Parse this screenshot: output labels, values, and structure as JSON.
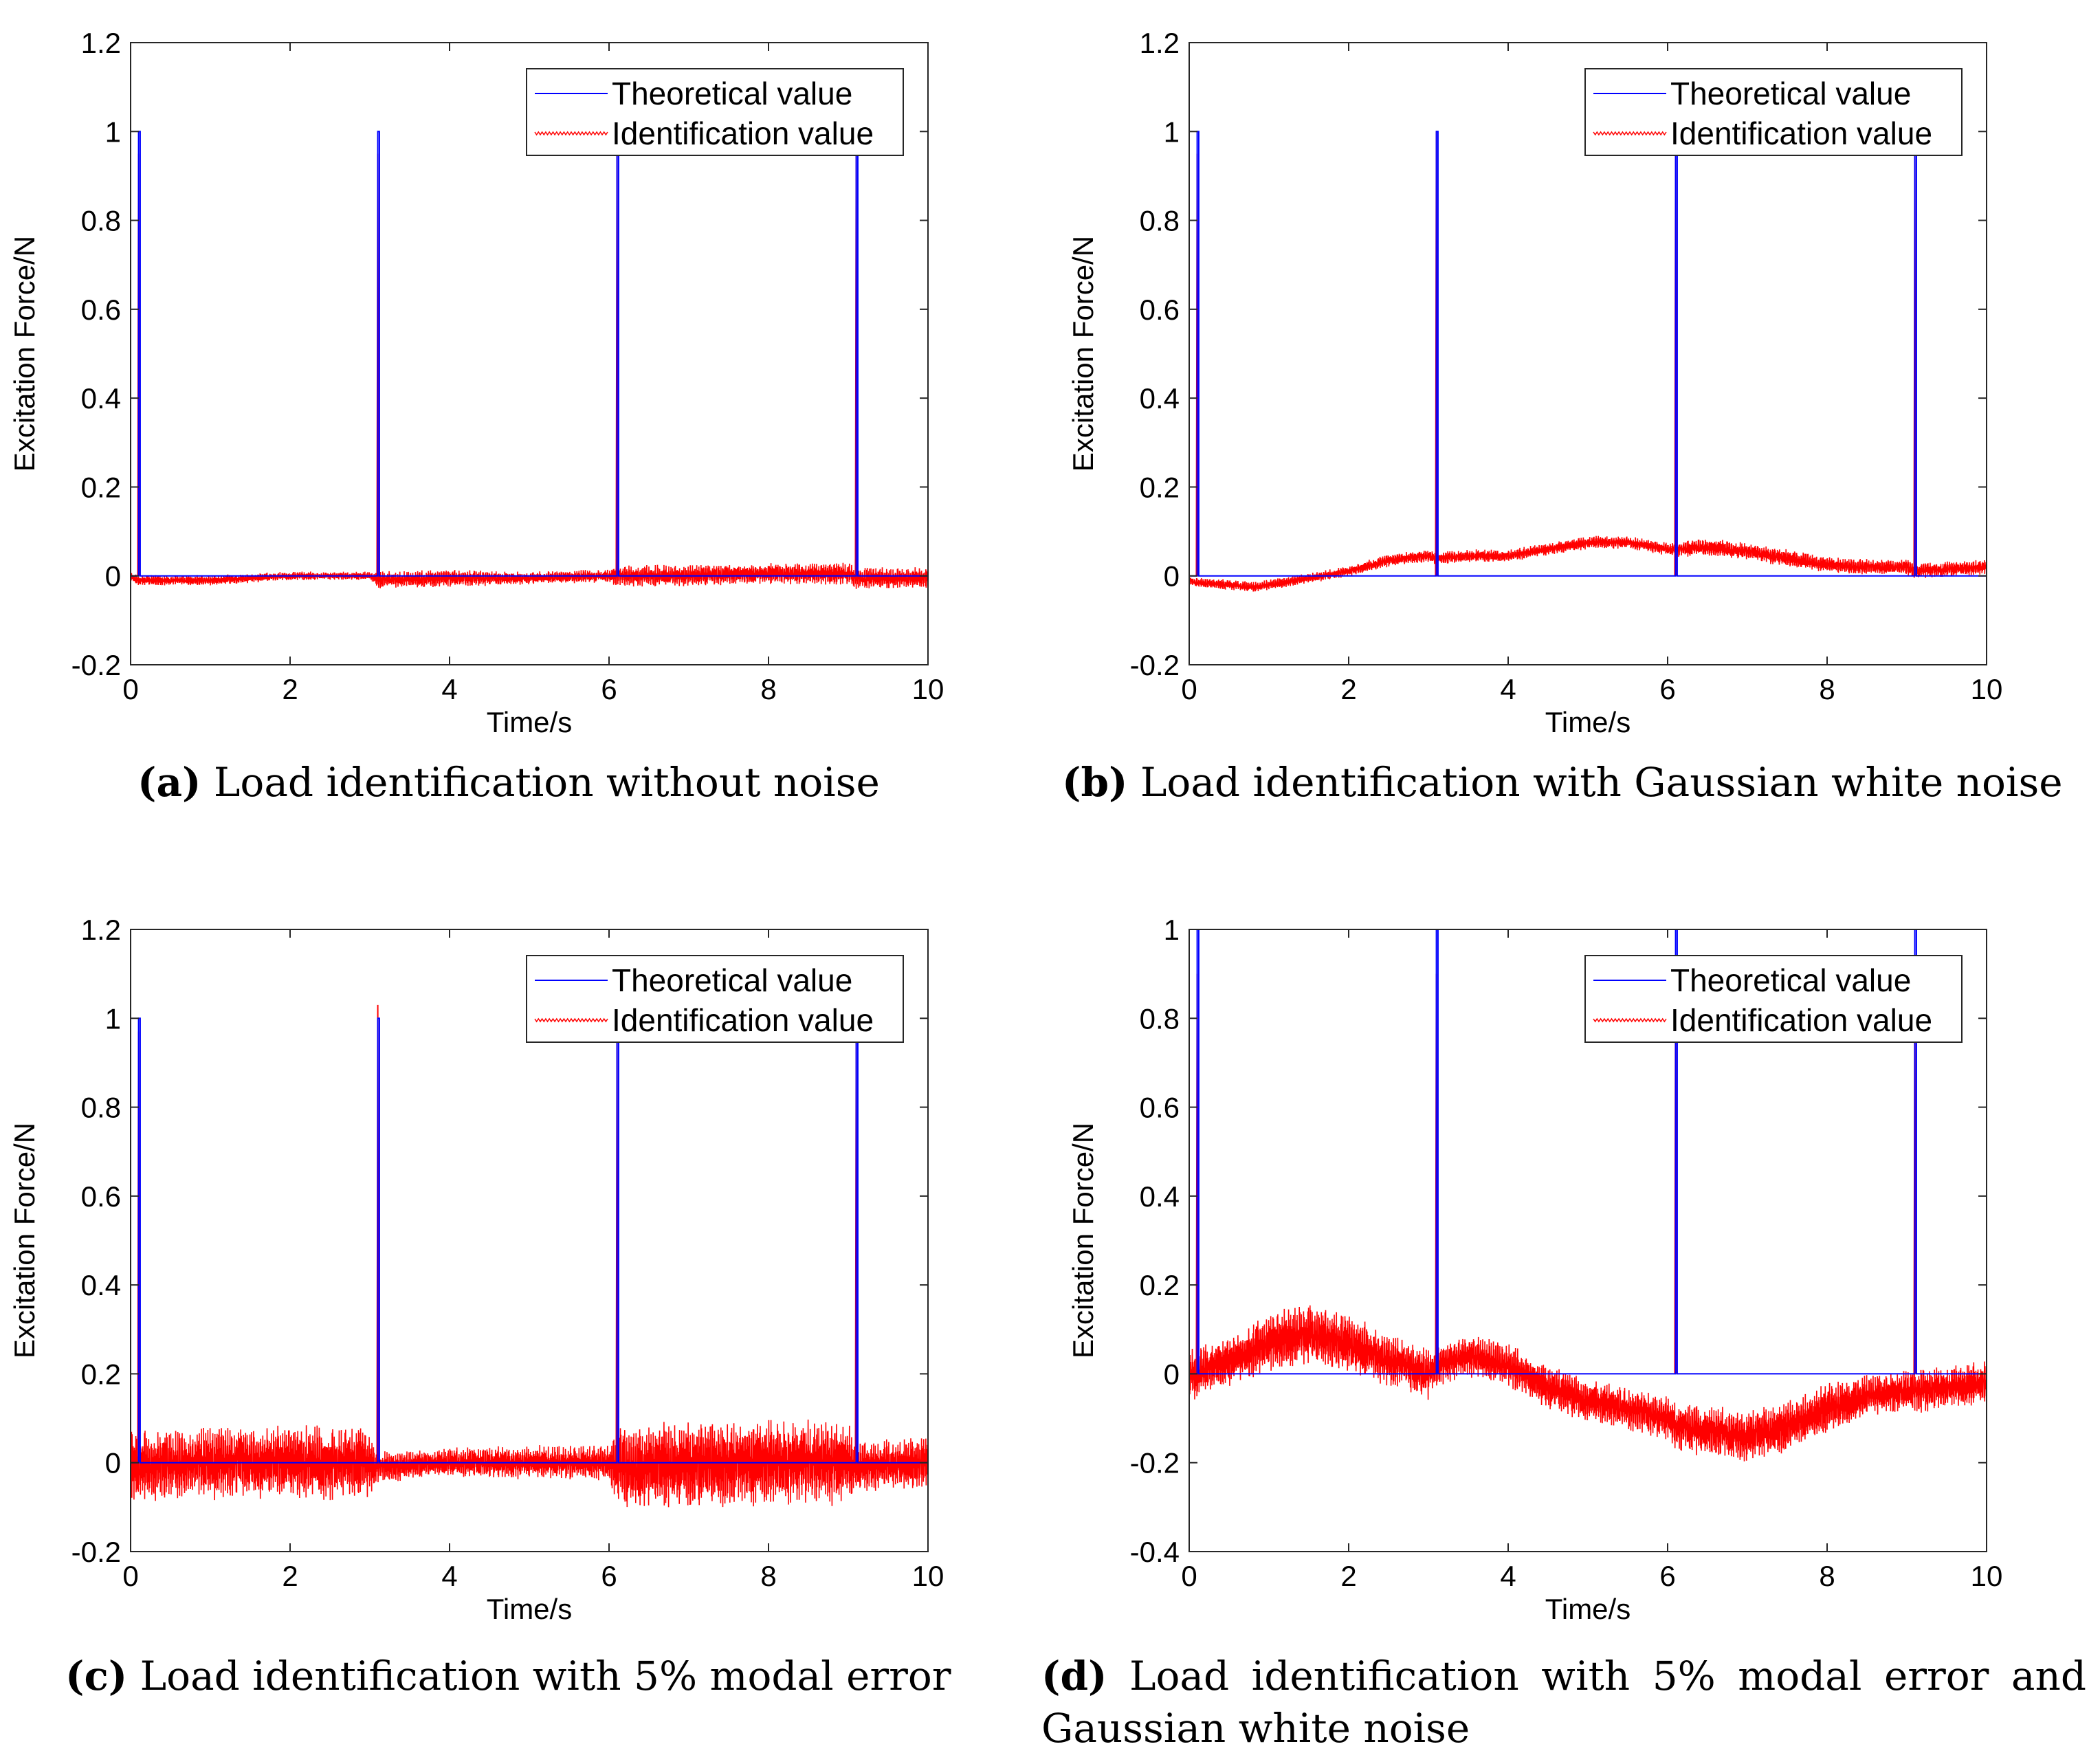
{
  "chart_data": [
    {
      "id": "a",
      "type": "line",
      "title": "",
      "xlabel": "Time/s",
      "ylabel": "Excitation Force/N",
      "xlim": [
        0,
        10
      ],
      "ylim": [
        -0.2,
        1.2
      ],
      "xticks": [
        "0",
        "2",
        "4",
        "6",
        "8",
        "10"
      ],
      "yticks": [
        "-0.2",
        "0",
        "0.2",
        "0.4",
        "0.6",
        "0.8",
        "1",
        "1.2"
      ],
      "legend": [
        "Theoretical value",
        "Identification value"
      ],
      "legend_position": "top-right",
      "series": [
        {
          "name": "Theoretical value",
          "color": "#0000ff",
          "impulse_times": [
            0.1,
            3.1,
            6.1,
            9.1
          ],
          "impulse_height": 1.0,
          "baseline": 0
        },
        {
          "name": "Identification value",
          "color": "#ff0000",
          "trend_x": [
            0,
            0.1,
            0.5,
            1,
            2,
            3,
            3.1,
            4,
            5,
            6,
            6.1,
            7,
            8,
            9,
            9.1,
            10
          ],
          "trend_y": [
            0,
            -0.01,
            -0.01,
            -0.01,
            0,
            0,
            -0.01,
            -0.005,
            -0.005,
            0,
            0,
            0,
            0.005,
            0.005,
            -0.005,
            -0.005
          ],
          "noise_amplitude": [
            0.012,
            0.012,
            0.012,
            0.012,
            0.01,
            0.01,
            0.02,
            0.02,
            0.015,
            0.015,
            0.025,
            0.025,
            0.025,
            0.025,
            0.025,
            0.025
          ],
          "impulse_times": [
            0.1,
            3.1,
            6.1,
            9.1
          ],
          "impulse_peaks": [
            0.95,
            0.95,
            0.95,
            0.95
          ]
        }
      ]
    },
    {
      "id": "b",
      "type": "line",
      "title": "",
      "xlabel": "Time/s",
      "ylabel": "Excitation Force/N",
      "xlim": [
        0,
        10
      ],
      "ylim": [
        -0.2,
        1.2
      ],
      "xticks": [
        "0",
        "2",
        "4",
        "6",
        "8",
        "10"
      ],
      "yticks": [
        "-0.2",
        "0",
        "0.2",
        "0.4",
        "0.6",
        "0.8",
        "1",
        "1.2"
      ],
      "legend": [
        "Theoretical value",
        "Identification value"
      ],
      "legend_position": "top-right",
      "series": [
        {
          "name": "Theoretical value",
          "color": "#0000ff",
          "impulse_times": [
            0.1,
            3.1,
            6.1,
            9.1
          ],
          "impulse_height": 1.0,
          "baseline": 0
        },
        {
          "name": "Identification value",
          "color": "#ff0000",
          "trend_x": [
            0,
            0.1,
            0.5,
            0.8,
            1,
            1.5,
            2,
            2.5,
            3,
            3.1,
            3.5,
            4,
            4.5,
            5,
            5.5,
            6,
            6.1,
            6.5,
            7,
            7.5,
            8,
            8.5,
            9,
            9.1,
            9.5,
            10
          ],
          "trend_y": [
            -0.01,
            -0.015,
            -0.02,
            -0.025,
            -0.02,
            -0.005,
            0.01,
            0.035,
            0.045,
            0.04,
            0.045,
            0.045,
            0.06,
            0.075,
            0.075,
            0.06,
            0.06,
            0.065,
            0.055,
            0.04,
            0.025,
            0.02,
            0.02,
            0.01,
            0.015,
            0.02
          ],
          "noise_amplitude": [
            0.012,
            0.012,
            0.012,
            0.012,
            0.012,
            0.012,
            0.012,
            0.015,
            0.015,
            0.015,
            0.015,
            0.015,
            0.015,
            0.015,
            0.015,
            0.015,
            0.02,
            0.02,
            0.02,
            0.02,
            0.018,
            0.018,
            0.018,
            0.018,
            0.018,
            0.018
          ],
          "impulse_times": [
            0.1,
            3.1,
            6.1,
            9.1
          ],
          "impulse_peaks": [
            0.95,
            1.0,
            0.95,
            0.95
          ]
        }
      ]
    },
    {
      "id": "c",
      "type": "line",
      "title": "",
      "xlabel": "Time/s",
      "ylabel": "Excitation Force/N",
      "xlim": [
        0,
        10
      ],
      "ylim": [
        -0.2,
        1.2
      ],
      "xticks": [
        "0",
        "2",
        "4",
        "6",
        "8",
        "10"
      ],
      "yticks": [
        "-0.2",
        "0",
        "0.2",
        "0.4",
        "0.6",
        "0.8",
        "1",
        "1.2"
      ],
      "legend": [
        "Theoretical value",
        "Identification value"
      ],
      "legend_position": "top-right",
      "series": [
        {
          "name": "Theoretical value",
          "color": "#0000ff",
          "impulse_times": [
            0.1,
            3.1,
            6.1,
            9.1
          ],
          "impulse_height": 1.0,
          "baseline": 0
        },
        {
          "name": "Identification value",
          "color": "#ff0000",
          "trend_x": [
            0,
            0.1,
            1,
            2,
            3,
            3.1,
            4,
            5,
            6,
            6.1,
            7,
            8,
            9,
            9.1,
            10
          ],
          "trend_y": [
            0,
            -0.01,
            0,
            0,
            0,
            -0.01,
            0,
            0,
            0,
            -0.01,
            -0.005,
            0,
            0,
            -0.01,
            0
          ],
          "noise_amplitude": [
            0.08,
            0.085,
            0.085,
            0.085,
            0.085,
            0.035,
            0.035,
            0.04,
            0.04,
            0.1,
            0.1,
            0.1,
            0.1,
            0.06,
            0.06
          ],
          "impulse_times": [
            0.1,
            3.1,
            6.1,
            9.1
          ],
          "impulse_peaks": [
            0.97,
            1.03,
            0.95,
            0.95
          ]
        }
      ]
    },
    {
      "id": "d",
      "type": "line",
      "title": "",
      "xlabel": "Time/s",
      "ylabel": "Excitation Force/N",
      "xlim": [
        0,
        10
      ],
      "ylim": [
        -0.4,
        1.0
      ],
      "xticks": [
        "0",
        "2",
        "4",
        "6",
        "8",
        "10"
      ],
      "yticks": [
        "-0.4",
        "-0.2",
        "0",
        "0.2",
        "0.4",
        "0.6",
        "0.8",
        "1"
      ],
      "legend": [
        "Theoretical value",
        "Identification value"
      ],
      "legend_position": "top-right",
      "series": [
        {
          "name": "Theoretical value",
          "color": "#0000ff",
          "impulse_times": [
            0.1,
            3.1,
            6.1,
            9.1
          ],
          "impulse_height": 1.0,
          "baseline": 0
        },
        {
          "name": "Identification value",
          "color": "#ff0000",
          "trend_x": [
            0,
            0.1,
            0.5,
            1,
            1.5,
            2,
            2.5,
            3,
            3.1,
            3.5,
            4,
            4.5,
            5,
            5.5,
            6,
            6.1,
            6.5,
            7,
            7.5,
            8,
            8.5,
            9,
            9.1,
            9.5,
            10
          ],
          "trend_y": [
            0.0,
            0.0,
            0.03,
            0.07,
            0.09,
            0.07,
            0.03,
            0.0,
            0.02,
            0.04,
            0.02,
            -0.03,
            -0.06,
            -0.08,
            -0.1,
            -0.12,
            -0.13,
            -0.14,
            -0.12,
            -0.08,
            -0.05,
            -0.04,
            -0.04,
            -0.03,
            -0.02
          ],
          "noise_amplitude": [
            0.06,
            0.06,
            0.06,
            0.07,
            0.07,
            0.07,
            0.06,
            0.06,
            0.05,
            0.05,
            0.05,
            0.05,
            0.05,
            0.05,
            0.05,
            0.06,
            0.06,
            0.06,
            0.06,
            0.06,
            0.05,
            0.05,
            0.05,
            0.05,
            0.05
          ],
          "impulse_times": [
            0.1,
            3.1,
            6.1,
            9.1
          ],
          "impulse_peaks": [
            0.9,
            0.9,
            0.9,
            0.9
          ]
        }
      ]
    }
  ],
  "captions": {
    "a": {
      "letter": "(a)",
      "text": " Load identification without noise"
    },
    "b": {
      "letter": "(b)",
      "text": " Load identification with Gaussian white noise"
    },
    "c": {
      "letter": "(c)",
      "text": " Load identification with 5% modal error"
    },
    "d": {
      "letter": "(d)",
      "text": " Load identification with 5% modal error and Gaussian white noise"
    }
  }
}
